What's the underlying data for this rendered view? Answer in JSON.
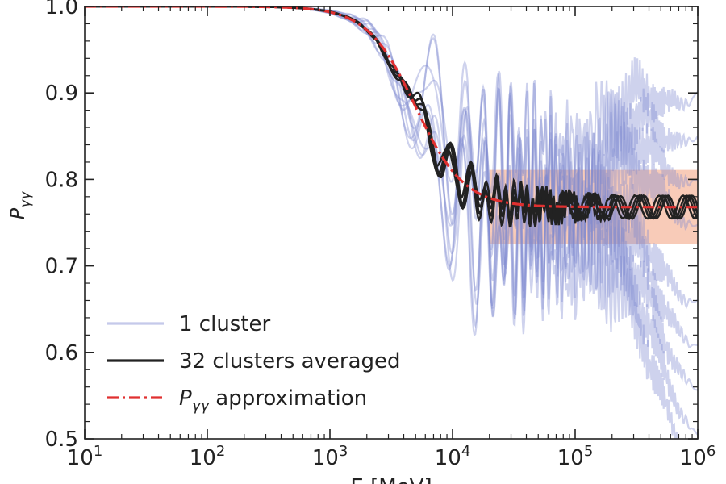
{
  "chart_data": {
    "type": "line",
    "xscale": "log",
    "xlim": [
      10,
      1000000
    ],
    "ylim": [
      0.5,
      1.0
    ],
    "xlabel": "E [MeV]",
    "ylabel": "P",
    "ylabel_sub": "γγ",
    "x_ticks": [
      {
        "value": 10,
        "base": "10",
        "exp": "1"
      },
      {
        "value": 100,
        "base": "10",
        "exp": "2"
      },
      {
        "value": 1000,
        "base": "10",
        "exp": "3"
      },
      {
        "value": 10000,
        "base": "10",
        "exp": "4"
      },
      {
        "value": 100000,
        "base": "10",
        "exp": "5"
      },
      {
        "value": 1000000,
        "base": "10",
        "exp": "6"
      }
    ],
    "y_ticks": [
      "0.5",
      "0.6",
      "0.7",
      "0.8",
      "0.9",
      "1.0"
    ],
    "band": {
      "y_low": 0.725,
      "y_high": 0.811,
      "x_start": 20000,
      "x_end": 1000000,
      "color": "#f6b9a0"
    },
    "series": [
      {
        "name": "1 cluster",
        "color": "#7f88d0",
        "kind": "single_cluster",
        "approx_description_points": [
          [
            1000,
            0.99
          ],
          [
            5000,
            0.8
          ],
          [
            10000,
            0.62
          ],
          [
            100000,
            0.75
          ],
          [
            1000000,
            0.98
          ]
        ]
      },
      {
        "name": "32 clusters averaged",
        "color": "#222222",
        "kind": "averaged",
        "points": [
          [
            10,
            1.0
          ],
          [
            300,
            0.999
          ],
          [
            1000,
            0.996
          ],
          [
            2000,
            0.985
          ],
          [
            3000,
            0.95
          ],
          [
            4000,
            0.9
          ],
          [
            5000,
            0.86
          ],
          [
            7000,
            0.82
          ],
          [
            10000,
            0.79
          ],
          [
            20000,
            0.765
          ],
          [
            30000,
            0.77
          ],
          [
            50000,
            0.78
          ],
          [
            100000,
            0.77
          ],
          [
            200000,
            0.75
          ],
          [
            500000,
            0.78
          ],
          [
            1000000,
            0.78
          ]
        ]
      },
      {
        "name": "approximation",
        "name_prefix": "P",
        "name_sub": "γγ",
        "color": "#e03030",
        "kind": "approximation",
        "plateau": 0.768,
        "midpoint": 5000
      }
    ],
    "legend": [
      {
        "label": "1 cluster"
      },
      {
        "label": "32 clusters averaged"
      },
      {
        "label_prefix": "P",
        "label_sub": "γγ",
        "label": " approximation"
      }
    ],
    "legend_placement": "bottom-left",
    "grid": false
  }
}
